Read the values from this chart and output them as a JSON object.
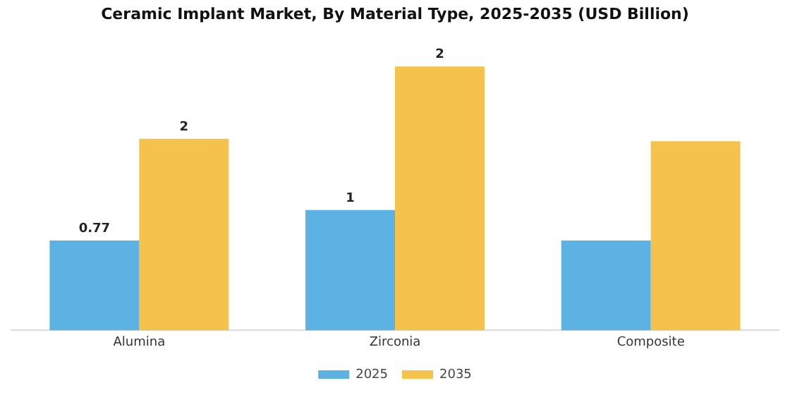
{
  "chart_data": {
    "type": "bar",
    "title": "Ceramic Implant Market, By Material Type, 2025-2035 (USD Billion)",
    "categories": [
      "Alumina",
      "Zirconia",
      "Composite"
    ],
    "legend": "bottom",
    "grid": false,
    "series": [
      {
        "name": "2025",
        "color": "#5db2e4",
        "values": [
          0.77,
          1.03,
          0.77
        ],
        "value_labels": [
          "0.77",
          "1",
          null
        ]
      },
      {
        "name": "2035",
        "color": "#f5c24c",
        "values": [
          1.64,
          2.26,
          1.62
        ],
        "value_labels": [
          "2",
          "2",
          null
        ]
      }
    ]
  }
}
